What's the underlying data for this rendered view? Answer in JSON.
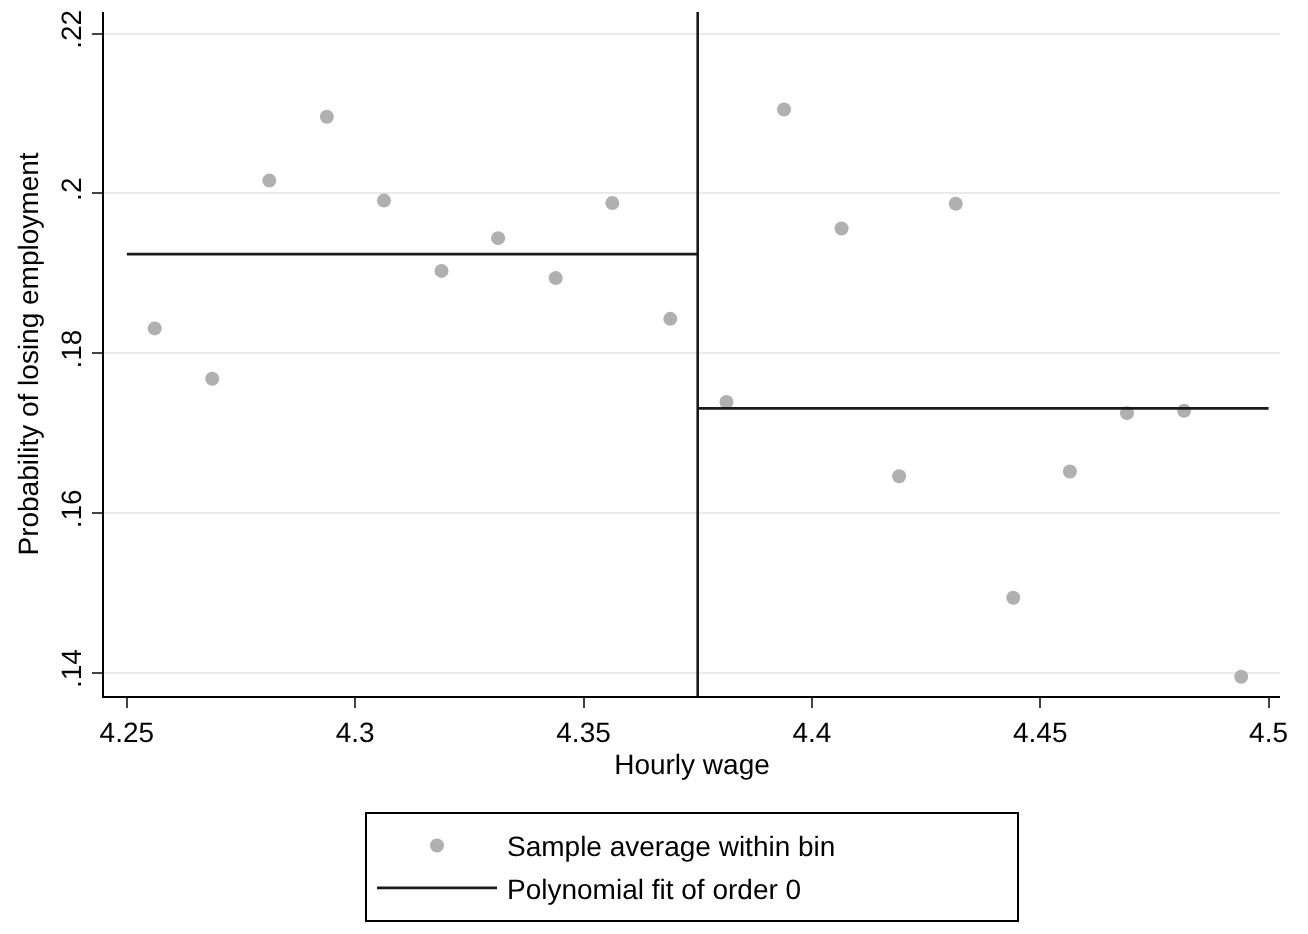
{
  "chart_data": {
    "type": "scatter",
    "xlabel": "Hourly wage",
    "ylabel": "Probability of losing employment",
    "xlim": [
      4.245,
      4.5025
    ],
    "xticks": [
      4.25,
      4.3,
      4.35,
      4.4,
      4.45,
      4.5
    ],
    "ylim": [
      0.1371,
      0.2227
    ],
    "yticks": [
      {
        "value": 0.14,
        "label": ".14"
      },
      {
        "value": 0.16,
        "label": ".16"
      },
      {
        "value": 0.18,
        "label": ".18"
      },
      {
        "value": 0.2,
        "label": ".2"
      },
      {
        "value": 0.22,
        "label": ".22"
      }
    ],
    "grid": "y",
    "legend": "bottom",
    "series": [
      {
        "name": "Sample average within bin",
        "marker": "circle",
        "color": "#b0b0b0",
        "x": [
          4.2561,
          4.2687,
          4.2812,
          4.2938,
          4.3063,
          4.3189,
          4.3313,
          4.3439,
          4.3563,
          4.369,
          4.3813,
          4.3939,
          4.4065,
          4.4191,
          4.4315,
          4.4441,
          4.4565,
          4.469,
          4.4815,
          4.494
        ],
        "values": [
          0.1831,
          0.1768,
          0.2016,
          0.2096,
          0.1991,
          0.1903,
          0.1944,
          0.1894,
          0.1988,
          0.1843,
          0.1739,
          0.2105,
          0.1956,
          0.1646,
          0.1987,
          0.1494,
          0.1652,
          0.1725,
          0.1728,
          0.1395
        ]
      },
      {
        "name": "Polynomial fit of order 0",
        "type": "line",
        "marker": "none",
        "color": "#1a1a1a",
        "line_style": "solid",
        "x": [
          4.25,
          4.375
        ],
        "values": [
          0.1924,
          0.1924
        ]
      },
      {
        "type": "line",
        "marker": "none",
        "color": "#1a1a1a",
        "line_style": "solid",
        "x": [
          4.375,
          4.5
        ],
        "values": [
          0.1731,
          0.1731
        ]
      }
    ],
    "ref_lines": [
      {
        "axis": "x",
        "value": 4.375,
        "color": "#1a1a1a",
        "line_style": "solid"
      }
    ]
  }
}
